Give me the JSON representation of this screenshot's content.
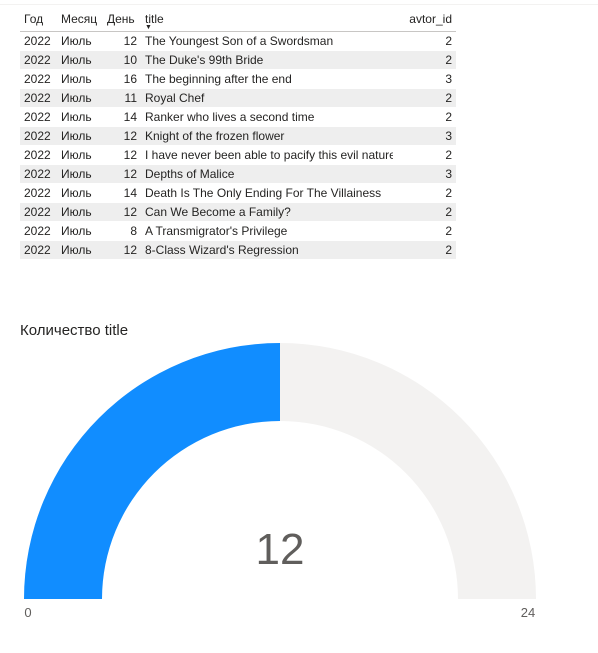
{
  "table": {
    "columns": [
      "Год",
      "Месяц",
      "День",
      "title",
      "avtor_id"
    ],
    "sorted_column": "title",
    "rows": [
      [
        "2022",
        "Июль",
        "12",
        "The Youngest Son of a Swordsman",
        "2"
      ],
      [
        "2022",
        "Июль",
        "10",
        "The Duke's 99th Bride",
        "2"
      ],
      [
        "2022",
        "Июль",
        "16",
        "The beginning after the end",
        "3"
      ],
      [
        "2022",
        "Июль",
        "11",
        "Royal Chef",
        "2"
      ],
      [
        "2022",
        "Июль",
        "14",
        "Ranker who lives a second time",
        "2"
      ],
      [
        "2022",
        "Июль",
        "12",
        "Knight of the frozen flower",
        "3"
      ],
      [
        "2022",
        "Июль",
        "12",
        "I have never been able to pacify this evil nature",
        "2"
      ],
      [
        "2022",
        "Июль",
        "12",
        "Depths of Malice",
        "3"
      ],
      [
        "2022",
        "Июль",
        "14",
        "Death Is The Only Ending For The Villainess",
        "2"
      ],
      [
        "2022",
        "Июль",
        "12",
        "Can We Become a Family?",
        "2"
      ],
      [
        "2022",
        "Июль",
        "8",
        "A Transmigrator's Privilege",
        "2"
      ],
      [
        "2022",
        "Июль",
        "12",
        "8-Class Wizard's Regression",
        "2"
      ]
    ]
  },
  "gauge": {
    "title": "Количество title",
    "value": 12,
    "value_label": "12",
    "min": 0,
    "max": 24,
    "min_label": "0",
    "max_label": "24",
    "fill_color": "#118dff",
    "track_color": "#f3f2f1",
    "value_color": "#605e5c",
    "label_color": "#605e5c"
  },
  "chart_data": {
    "type": "gauge",
    "title": "Количество title",
    "value": 12,
    "min": 0,
    "max": 24
  }
}
